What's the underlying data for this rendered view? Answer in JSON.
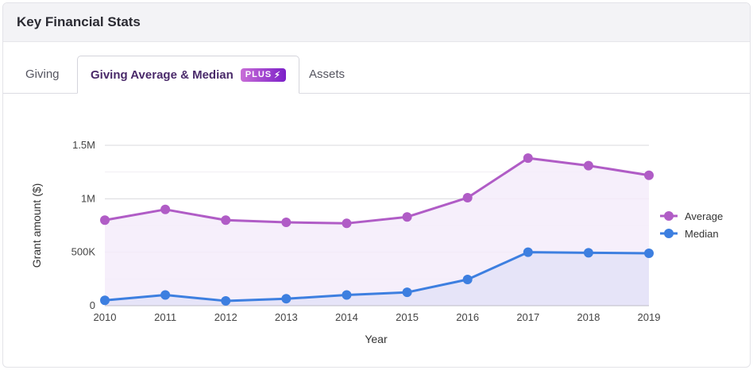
{
  "card": {
    "title": "Key Financial Stats"
  },
  "tabs": [
    {
      "label": "Giving"
    },
    {
      "label": "Giving Average & Median",
      "badge": "PLUS",
      "badge_icon": "bolt-icon"
    },
    {
      "label": "Assets"
    }
  ],
  "colors": {
    "average": "#b05cc6",
    "median": "#3d7fe0",
    "average_fill": "#f4ecfa",
    "median_fill": "#e4e2f7"
  },
  "chart_data": {
    "type": "area",
    "x": [
      "2010",
      "2011",
      "2012",
      "2013",
      "2014",
      "2015",
      "2016",
      "2017",
      "2018",
      "2019"
    ],
    "series": [
      {
        "name": "Average",
        "values": [
          800000,
          900000,
          800000,
          780000,
          770000,
          830000,
          1010000,
          1380000,
          1310000,
          1220000
        ]
      },
      {
        "name": "Median",
        "values": [
          50000,
          100000,
          45000,
          65000,
          100000,
          125000,
          245000,
          500000,
          495000,
          490000
        ]
      }
    ],
    "xlabel": "Year",
    "ylabel": "Grant amount ($)",
    "yticks": [
      0,
      500000,
      1000000,
      1500000
    ],
    "ytick_labels": [
      "0",
      "500K",
      "1M",
      "1.5M"
    ],
    "ylim": [
      0,
      1500000
    ],
    "grid": true,
    "legend_position": "right"
  }
}
